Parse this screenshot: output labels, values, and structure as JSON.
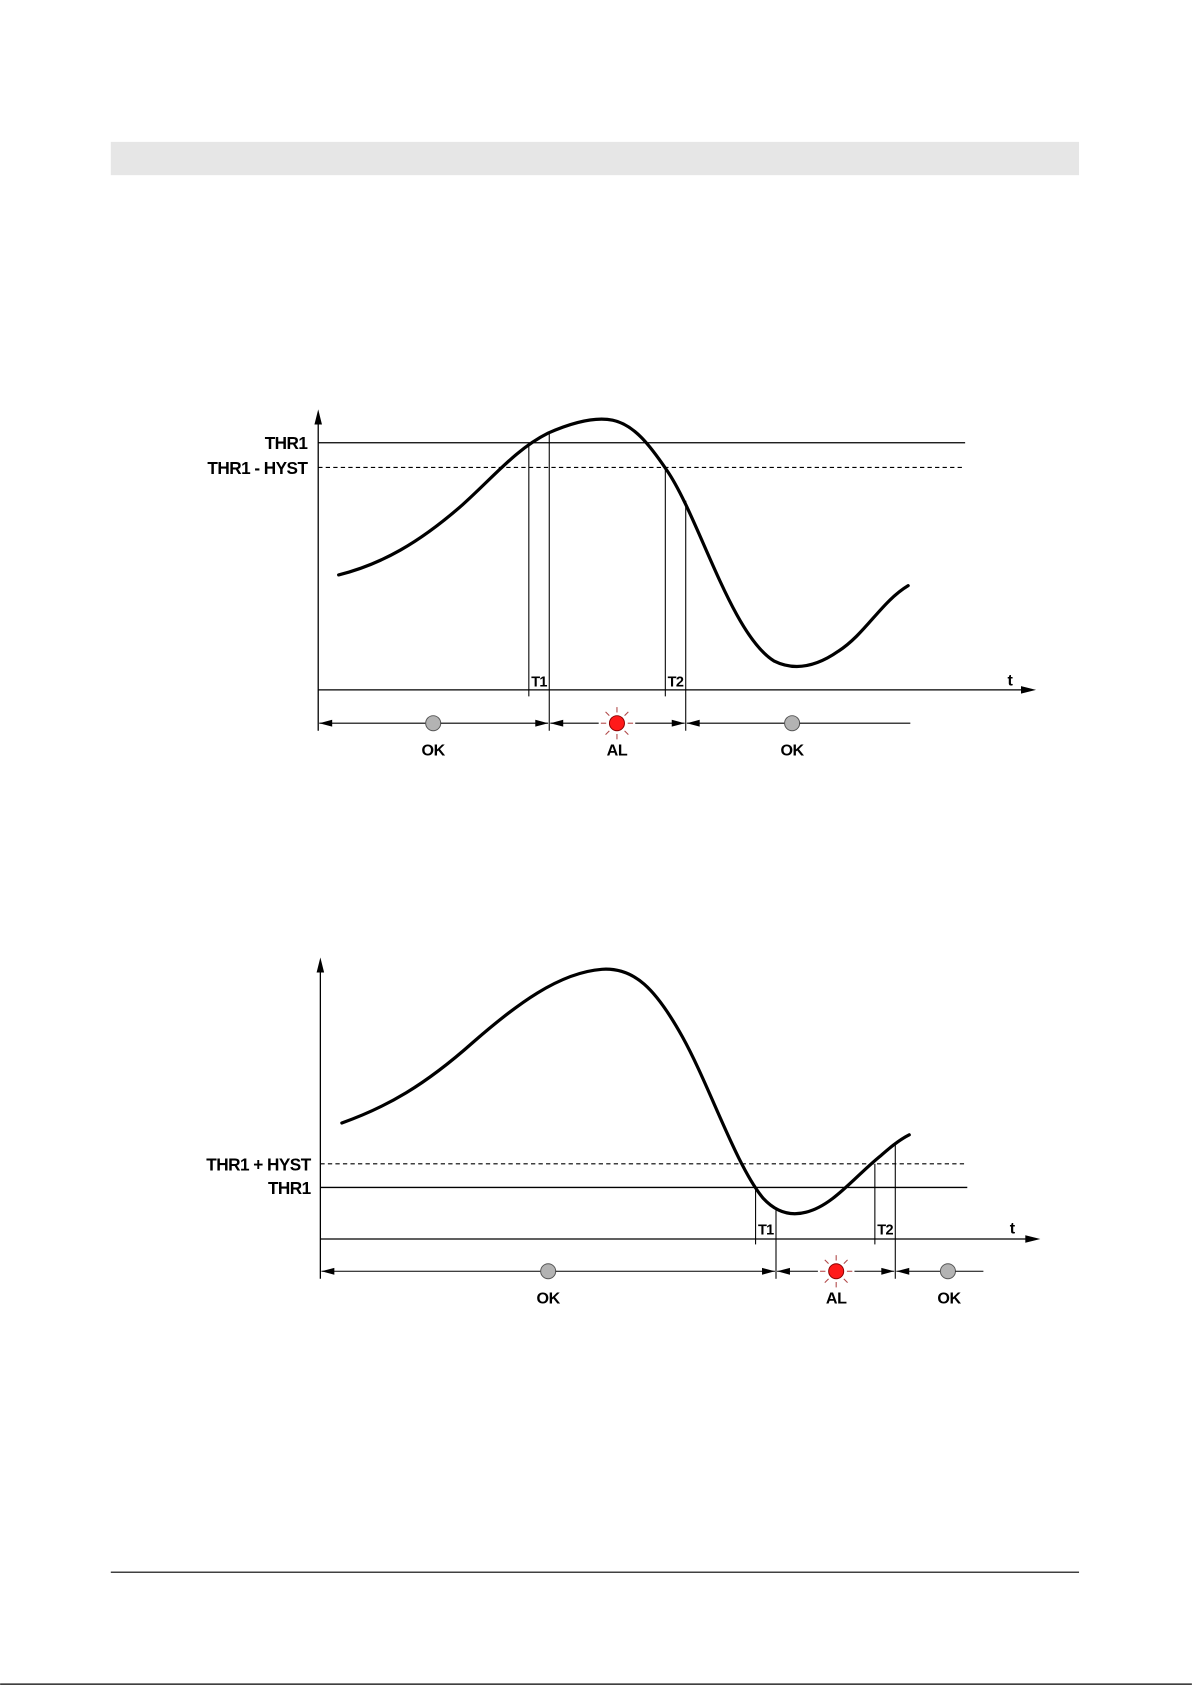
{
  "colors": {
    "header_band": "#e6e6e6",
    "ok_led": "#b3b3b3",
    "alarm_led": "#ff1a1a",
    "curve": "#000000"
  },
  "diagram_high_threshold": {
    "threshold_label": "THR1",
    "hysteresis_label": "THR1 - HYST",
    "t1_label": "T1",
    "t2_label": "T2",
    "time_axis_label": "t",
    "states": [
      {
        "label": "OK",
        "icon": "gray-led-icon"
      },
      {
        "label": "AL",
        "icon": "red-led-flashing-icon"
      },
      {
        "label": "OK",
        "icon": "gray-led-icon"
      }
    ]
  },
  "diagram_low_threshold": {
    "hysteresis_label": "THR1 + HYST",
    "threshold_label": "THR1",
    "t1_label": "T1",
    "t2_label": "T2",
    "time_axis_label": "t",
    "states": [
      {
        "label": "OK",
        "icon": "gray-led-icon"
      },
      {
        "label": "AL",
        "icon": "red-led-flashing-icon"
      },
      {
        "label": "OK",
        "icon": "gray-led-icon"
      }
    ]
  }
}
